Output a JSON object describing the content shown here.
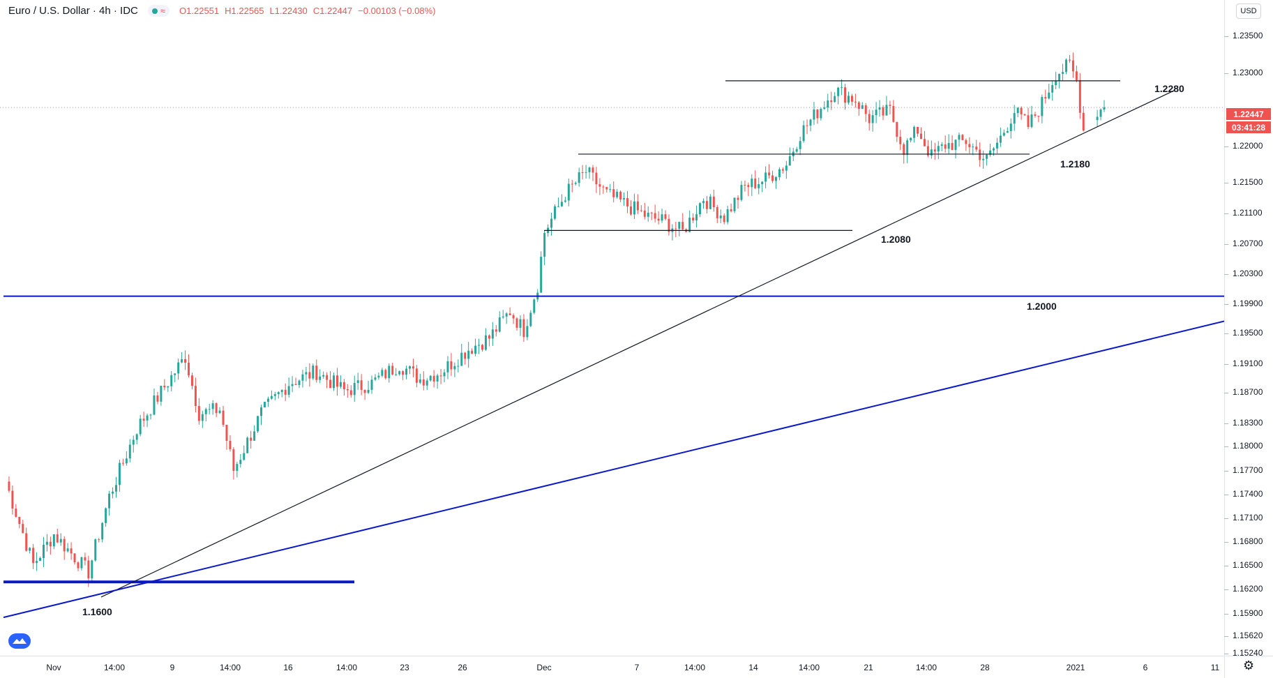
{
  "legend": {
    "symbol": "Euro / U.S. Dollar · 4h · IDC",
    "approx_icon": "≈",
    "open": "O1.22551",
    "high": "H1.22565",
    "low": "L1.22430",
    "close": "C1.22447",
    "change": "−0.00103 (−0.08%)"
  },
  "currency_button": "USD",
  "price_labels": {
    "current_price": "1.22447",
    "countdown": "03:41:28"
  },
  "icons": {
    "status": "green-dot-icon",
    "logo": "tradingview-logo-icon",
    "settings": "gear-icon"
  },
  "colors": {
    "up": "#26a69a",
    "down": "#ef5350",
    "support_blue": "#0a18c8",
    "trendline": "#131722",
    "current_price_line": "#9598a1"
  },
  "chart_data": {
    "type": "candlestick",
    "symbol": "EURUSD",
    "timeframe": "4h",
    "x_tick_labels": [
      "Nov",
      "14:00",
      "9",
      "14:00",
      "16",
      "14:00",
      "23",
      "26",
      "Dec",
      "7",
      "14:00",
      "14",
      "14:00",
      "21",
      "14:00",
      "28",
      "2021",
      "6",
      "11"
    ],
    "y_tick_labels": [
      "1.23500",
      "1.23000",
      "1.22000",
      "1.21500",
      "1.21100",
      "1.20700",
      "1.20300",
      "1.19900",
      "1.19500",
      "1.19100",
      "1.18700",
      "1.18300",
      "1.18000",
      "1.17700",
      "1.17400",
      "1.17100",
      "1.16800",
      "1.16500",
      "1.16200",
      "1.15900",
      "1.15620",
      "1.15240"
    ],
    "ylim": [
      1.1524,
      1.2385
    ],
    "anchor_closes": [
      [
        0,
        1.175
      ],
      [
        8,
        1.164
      ],
      [
        14,
        1.168
      ],
      [
        24,
        1.163
      ],
      [
        30,
        1.173
      ],
      [
        38,
        1.182
      ],
      [
        46,
        1.1875
      ],
      [
        52,
        1.1915
      ],
      [
        56,
        1.184
      ],
      [
        62,
        1.1845
      ],
      [
        66,
        1.1765
      ],
      [
        74,
        1.184
      ],
      [
        82,
        1.188
      ],
      [
        90,
        1.1895
      ],
      [
        98,
        1.187
      ],
      [
        106,
        1.188
      ],
      [
        114,
        1.1905
      ],
      [
        120,
        1.1885
      ],
      [
        126,
        1.1895
      ],
      [
        134,
        1.1925
      ],
      [
        140,
        1.194
      ],
      [
        146,
        1.1975
      ],
      [
        150,
        1.195
      ],
      [
        154,
        1.201
      ],
      [
        156,
        1.208
      ],
      [
        162,
        1.213
      ],
      [
        168,
        1.216
      ],
      [
        174,
        1.213
      ],
      [
        180,
        1.2115
      ],
      [
        186,
        1.21
      ],
      [
        190,
        1.2095
      ],
      [
        196,
        1.208
      ],
      [
        202,
        1.2125
      ],
      [
        208,
        1.21
      ],
      [
        214,
        1.214
      ],
      [
        220,
        1.215
      ],
      [
        226,
        1.217
      ],
      [
        230,
        1.221
      ],
      [
        236,
        1.2245
      ],
      [
        240,
        1.2268
      ],
      [
        246,
        1.2255
      ],
      [
        250,
        1.223
      ],
      [
        256,
        1.224
      ],
      [
        260,
        1.219
      ],
      [
        264,
        1.2215
      ],
      [
        268,
        1.218
      ],
      [
        272,
        1.2195
      ],
      [
        278,
        1.22
      ],
      [
        284,
        1.2175
      ],
      [
        288,
        1.2205
      ],
      [
        292,
        1.224
      ],
      [
        296,
        1.222
      ],
      [
        300,
        1.225
      ],
      [
        304,
        1.229
      ],
      [
        308,
        1.23
      ],
      [
        310,
        1.228
      ],
      [
        312,
        1.2215
      ],
      [
        316,
        1.2238
      ],
      [
        318,
        1.2245
      ]
    ],
    "horizontal_lines": [
      {
        "label": "1.2280",
        "price": 1.228
      },
      {
        "label": "1.2180",
        "price": 1.2183
      },
      {
        "label": "1.2080",
        "price": 1.2082
      },
      {
        "label": "1.2000",
        "price": 1.1995,
        "color": "#0a18c8"
      },
      {
        "label": "",
        "price": 1.1617,
        "color": "#0a18c8"
      }
    ],
    "trendlines": [
      {
        "label": "1.1600",
        "from_price": 1.1597,
        "to_price": 1.2267,
        "color": "#131722"
      },
      {
        "label": "",
        "from_price": 1.157,
        "to_price": 1.1962,
        "color": "#0a18c8"
      }
    ],
    "current_price": 1.22447,
    "grid": false,
    "legend": "top-left"
  }
}
